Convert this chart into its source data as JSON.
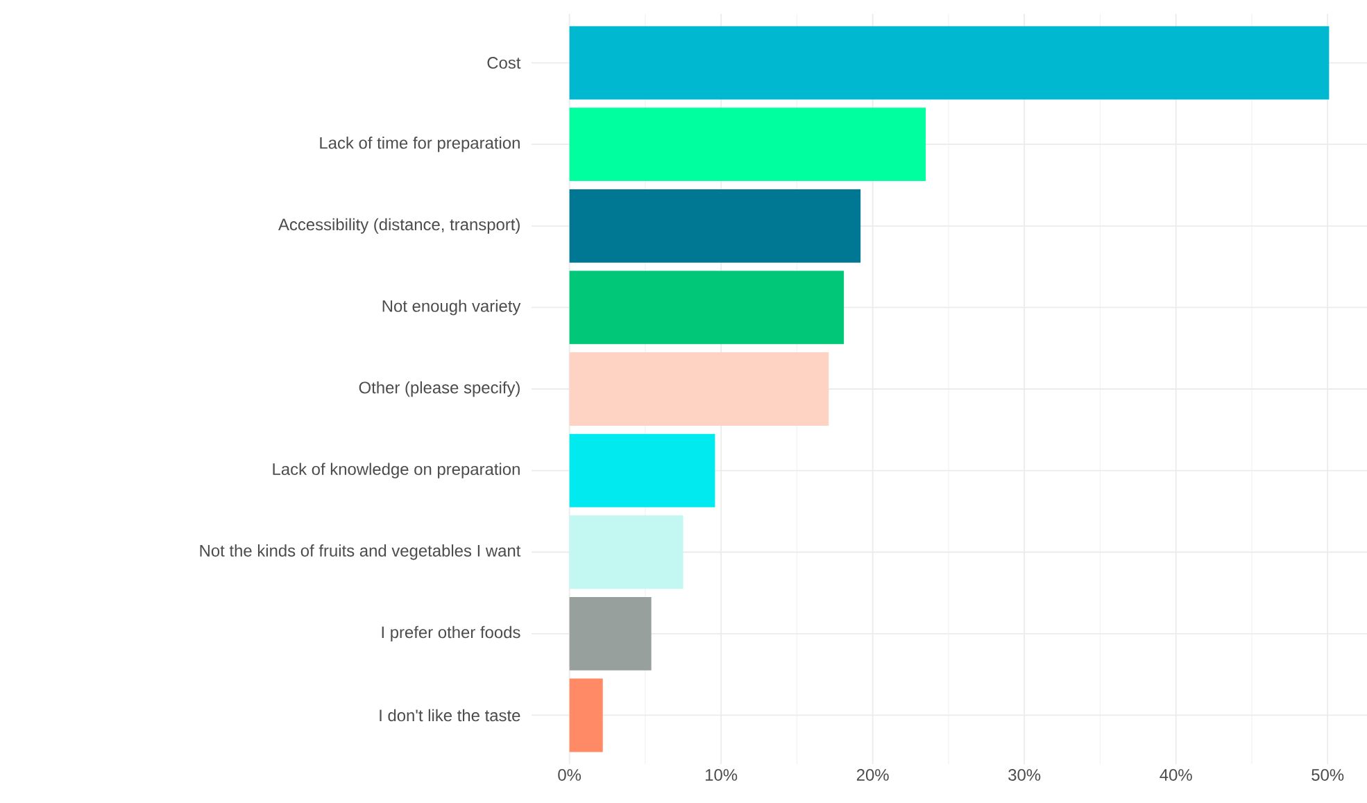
{
  "chart_data": {
    "type": "bar",
    "orientation": "horizontal",
    "categories": [
      "Cost",
      "Lack of time for preparation",
      "Accessibility (distance, transport)",
      "Not enough variety",
      "Other (please specify)",
      "Lack of knowledge on preparation",
      "Not the kinds of fruits and vegetables I want",
      "I prefer other foods",
      "I don't like the taste"
    ],
    "values": [
      50.1,
      23.5,
      19.2,
      18.1,
      17.1,
      9.6,
      7.5,
      5.4,
      2.2
    ],
    "colors": [
      "#00b8d0",
      "#00ff9f",
      "#007893",
      "#00c878",
      "#ffd3c4",
      "#00eaf0",
      "#c3f7f2",
      "#98a09e",
      "#ff8a65"
    ],
    "xlim": [
      -2.5,
      52.6
    ],
    "xticks": [
      {
        "value": 0,
        "label": "0%"
      },
      {
        "value": 10,
        "label": "10%"
      },
      {
        "value": 20,
        "label": "20%"
      },
      {
        "value": 30,
        "label": "30%"
      },
      {
        "value": 40,
        "label": "40%"
      },
      {
        "value": 50,
        "label": "50%"
      }
    ],
    "grid": true
  }
}
